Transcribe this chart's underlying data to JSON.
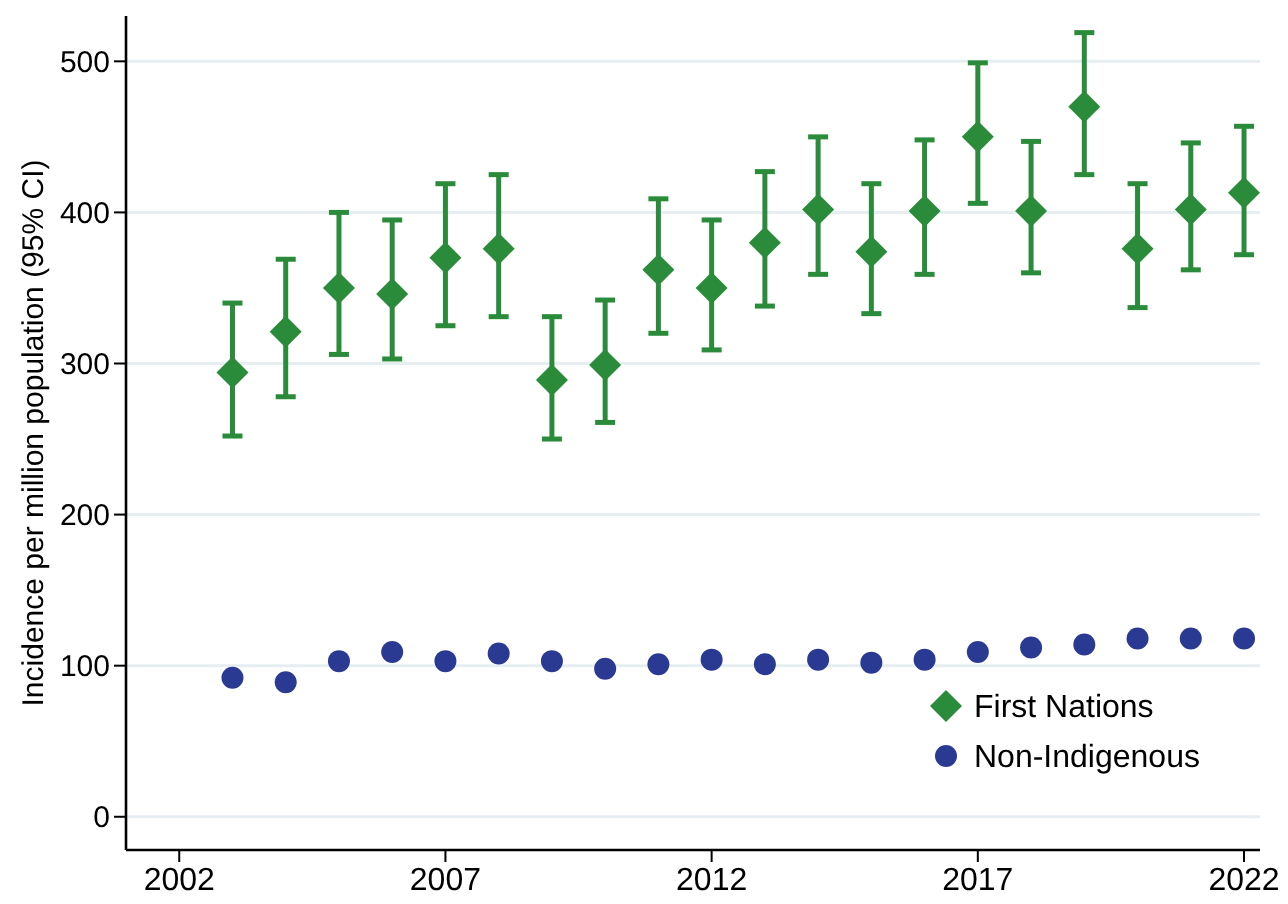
{
  "chart_data": {
    "type": "scatter",
    "ylabel": "Incidence per million population (95% CI)",
    "x": [
      2003,
      2004,
      2005,
      2006,
      2007,
      2008,
      2009,
      2010,
      2011,
      2012,
      2013,
      2014,
      2015,
      2016,
      2017,
      2018,
      2019,
      2020,
      2021,
      2022
    ],
    "series": [
      {
        "name": "First Nations",
        "color": "#2a8c3a",
        "marker": "diamond",
        "values": [
          294,
          321,
          350,
          346,
          370,
          376,
          289,
          299,
          362,
          350,
          380,
          402,
          374,
          401,
          450,
          401,
          470,
          376,
          402,
          413
        ],
        "errors": [
          [
            252,
            340
          ],
          [
            278,
            369
          ],
          [
            306,
            400
          ],
          [
            303,
            395
          ],
          [
            325,
            419
          ],
          [
            331,
            425
          ],
          [
            250,
            331
          ],
          [
            261,
            342
          ],
          [
            320,
            409
          ],
          [
            309,
            395
          ],
          [
            338,
            427
          ],
          [
            359,
            450
          ],
          [
            333,
            419
          ],
          [
            359,
            448
          ],
          [
            406,
            499
          ],
          [
            360,
            447
          ],
          [
            425,
            519
          ],
          [
            337,
            419
          ],
          [
            362,
            446
          ],
          [
            372,
            457
          ]
        ]
      },
      {
        "name": "Non-Indigenous",
        "color": "#2a3a93",
        "marker": "circle",
        "values": [
          92,
          89,
          103,
          109,
          103,
          108,
          103,
          98,
          101,
          104,
          101,
          104,
          102,
          104,
          109,
          112,
          114,
          118,
          118,
          118
        ]
      }
    ],
    "xlim": [
      2001,
      2022.3
    ],
    "xticks": [
      2002,
      2007,
      2012,
      2017,
      2022
    ],
    "ylim": [
      -22,
      530
    ],
    "yticks": [
      0,
      100,
      200,
      300,
      400,
      500
    ],
    "grid": "y",
    "legend": "bottom right"
  }
}
